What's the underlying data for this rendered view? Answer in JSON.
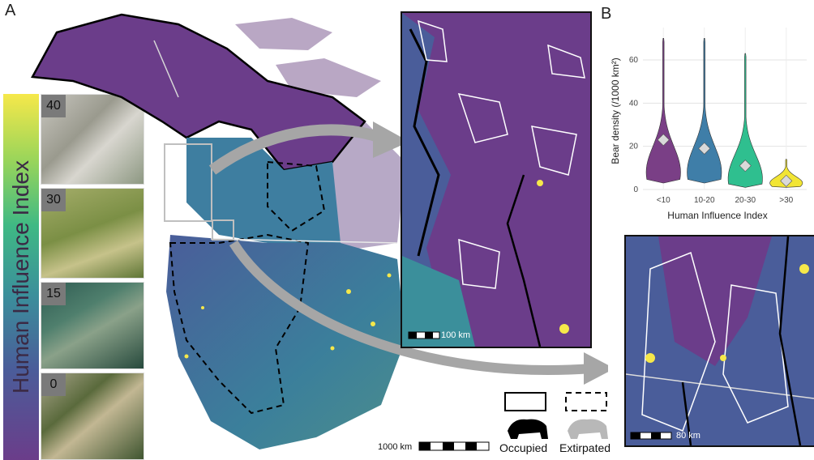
{
  "panel_labels": {
    "a": "A",
    "b": "B"
  },
  "legend": {
    "title": "Human Influence Index",
    "photos": [
      {
        "tag": "40"
      },
      {
        "tag": "30"
      },
      {
        "tag": "15"
      },
      {
        "tag": "0"
      }
    ]
  },
  "map": {
    "scale_main": "1000 km",
    "scale_inset1": "100 km",
    "scale_inset2": "80 km",
    "legend_occupied": "Occupied",
    "legend_extirpated": "Extirpated"
  },
  "colors": {
    "lowHII": "#6b3d8a",
    "midLowHII": "#4a5d9a",
    "midHII": "#3b8f9b",
    "midHighHII": "#3fb984",
    "highHII": "#f6e84a",
    "arrow": "#a6a6a6"
  },
  "chart_data": {
    "type": "violin",
    "title": "",
    "xlabel": "Human Influence Index",
    "ylabel": "Bear density (/1000 km²)",
    "categories": [
      "<10",
      "10-20",
      "20-30",
      ">30"
    ],
    "ylim": [
      0,
      75
    ],
    "yticks": [
      0,
      20,
      40,
      60
    ],
    "grid": true,
    "series": [
      {
        "category": "<10",
        "color": "#7a3f86",
        "max": 70,
        "min": 3,
        "mean": 23,
        "peak": 8
      },
      {
        "category": "10-20",
        "color": "#3f7ea8",
        "max": 70,
        "min": 3,
        "mean": 19,
        "peak": 8
      },
      {
        "category": "20-30",
        "color": "#2fbf8f",
        "max": 63,
        "min": 1,
        "mean": 11,
        "peak": 5
      },
      {
        "category": ">30",
        "color": "#f2e534",
        "max": 14,
        "min": 1,
        "mean": 4,
        "peak": 3
      }
    ]
  }
}
